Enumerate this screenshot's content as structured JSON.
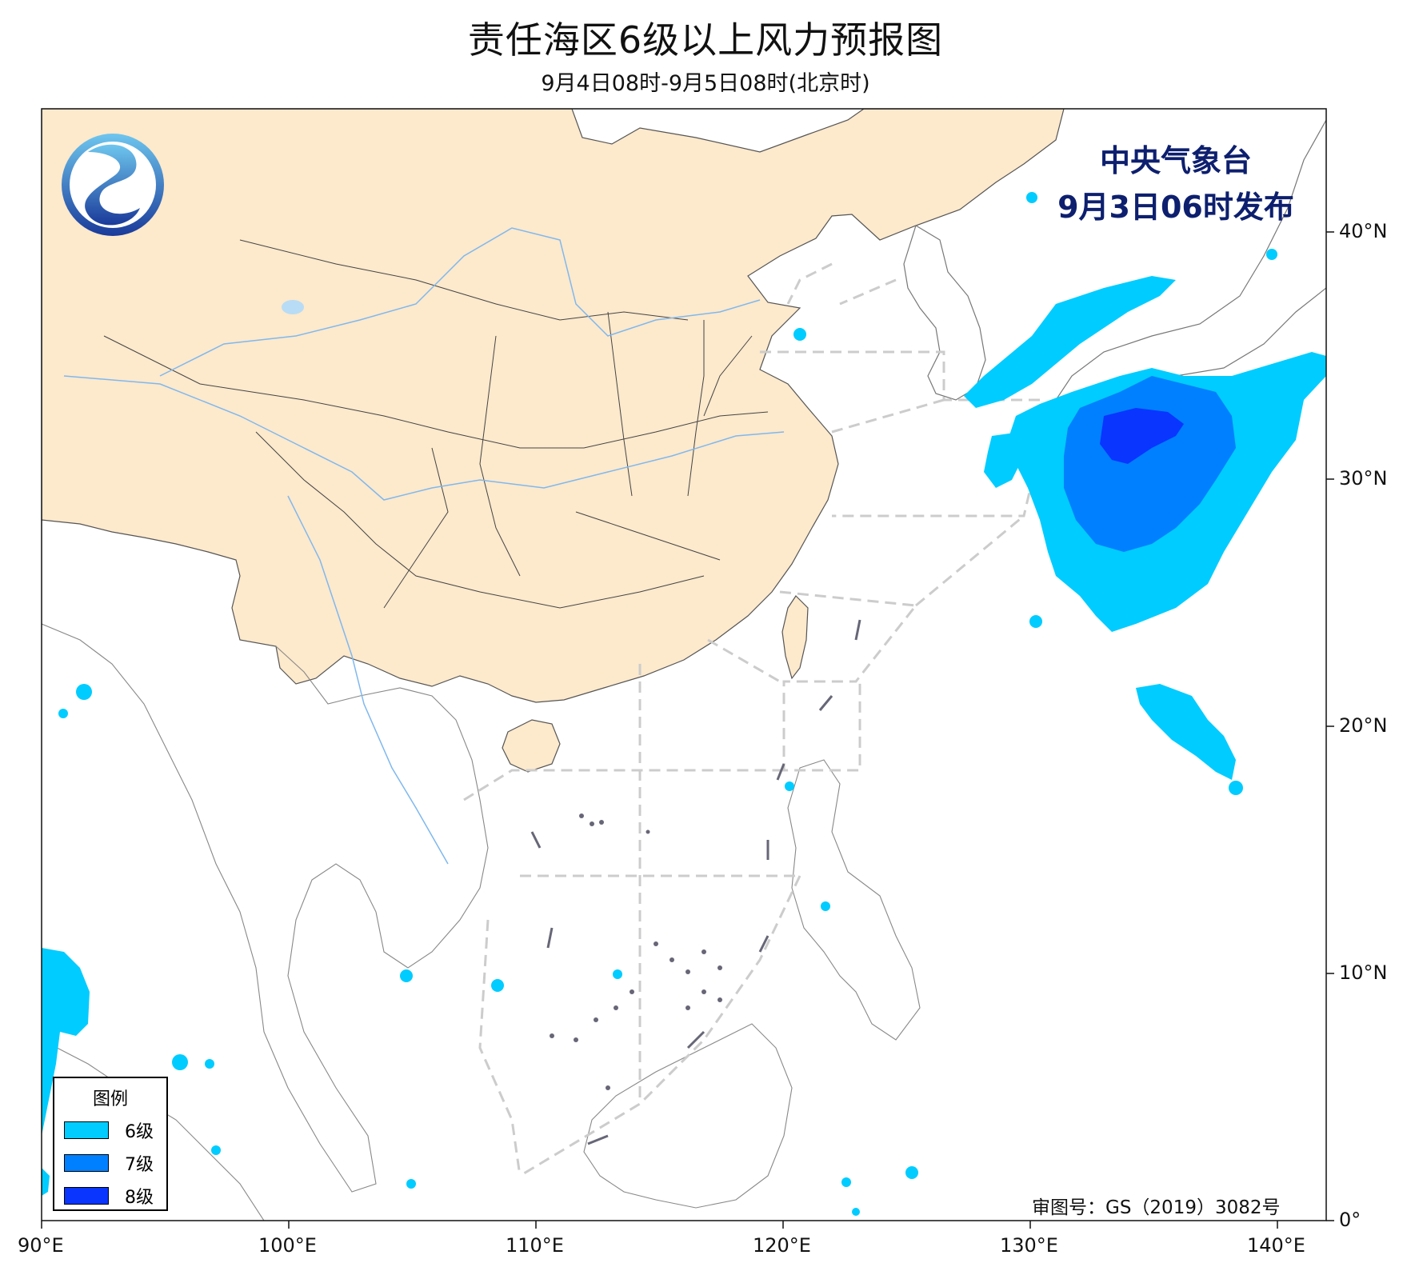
{
  "title": "责任海区6级以上风力预报图",
  "subtitle": "9月4日08时-9月5日08时(北京时)",
  "agency": "中央气象台",
  "issued": "9月3日06时发布",
  "approval": "审图号：GS（2019）3082号",
  "legend": {
    "title": "图例",
    "items": [
      {
        "label": "6级",
        "color": "#00ccff"
      },
      {
        "label": "7级",
        "color": "#0080ff"
      },
      {
        "label": "8级",
        "color": "#0a35ff"
      }
    ]
  },
  "axes": {
    "lon_ticks": [
      "90°E",
      "100°E",
      "110°E",
      "120°E",
      "130°E",
      "140°E"
    ],
    "lat_ticks": [
      "0°",
      "10°N",
      "20°N",
      "30°N",
      "40°N"
    ]
  },
  "colors": {
    "china_land": "#fde9cc",
    "border": "#555555",
    "river": "#7fb8ee",
    "sea_zone_line": "#cccccc",
    "logo": "#1a4ba0"
  }
}
